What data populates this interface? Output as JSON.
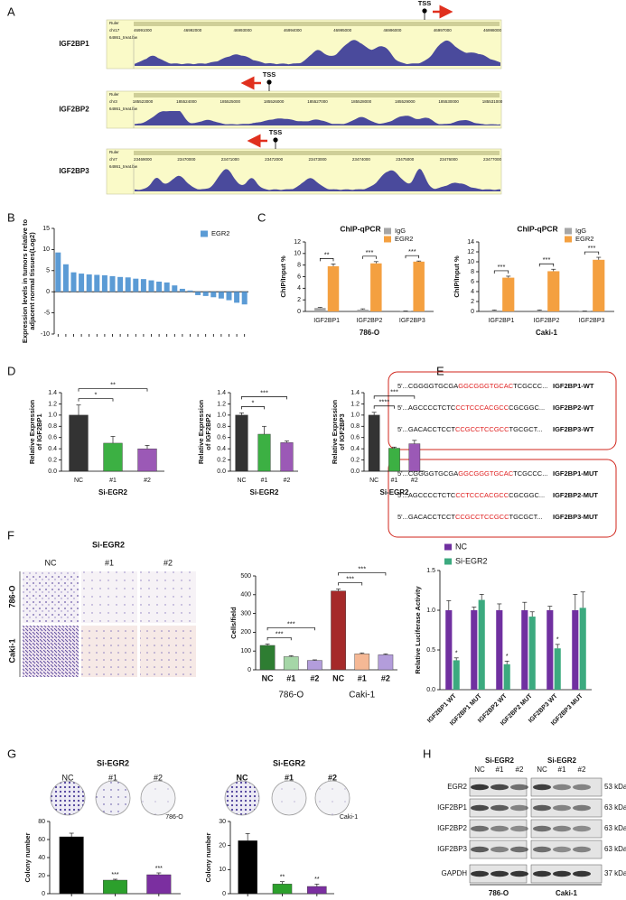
{
  "panel_labels": [
    "A",
    "B",
    "C",
    "D",
    "E",
    "F",
    "G",
    "H"
  ],
  "tracks": [
    {
      "gene": "IGF2BP1",
      "chrom": "chr17",
      "ruler": "Ruler",
      "file": "64861_treat.bw",
      "tss": "TSS",
      "positions": [
        "46991000",
        "46992000",
        "46993000",
        "46994000",
        "46995000",
        "46996000",
        "46997000",
        "46998000"
      ]
    },
    {
      "gene": "IGF2BP2",
      "chrom": "chr3",
      "ruler": "Ruler",
      "file": "64861_treat.bw",
      "tss": "TSS",
      "positions": [
        "185523000",
        "185524000",
        "185525000",
        "185526000",
        "185527000",
        "185528000",
        "185529000",
        "185530000",
        "185531000"
      ]
    },
    {
      "gene": "IGF2BP3",
      "chrom": "chr7",
      "ruler": "Ruler",
      "file": "64861_treat.bw",
      "tss": "TSS",
      "positions": [
        "23469000",
        "23470000",
        "23471000",
        "23472000",
        "23473000",
        "23474000",
        "23475000",
        "23476000",
        "23477000"
      ]
    }
  ],
  "sequences": {
    "wt": [
      {
        "prefix": "5'...CGGGGTGCGA",
        "site": "GGCGGGTGCAC",
        "suffix": "TCGCCC...",
        "name": "IGF2BP1-WT"
      },
      {
        "prefix": "5'...AGCCCCTCTC",
        "site": "CCTCCCACGCC",
        "suffix": "CGCGGC...",
        "name": "IGF2BP2-WT"
      },
      {
        "prefix": "5'...GACACCTCCT",
        "site": "CCGCCTCCGCC",
        "suffix": "TGCGCT...",
        "name": "IGF2BP3-WT"
      }
    ],
    "mut": [
      {
        "prefix": "5'...CGGGGTGCGA",
        "site": "GGCGGGTGCAC",
        "suffix": "TCGCCC...",
        "name": "IGF2BP1-MUT"
      },
      {
        "prefix": "5'...AGCCCCTCTC",
        "site": "CCTCCCACGCC",
        "suffix": "CGCGGC...",
        "name": "IGF2BP2-MUT"
      },
      {
        "prefix": "5'...GACACCTCCT",
        "site": "CCGCCTCCGCC",
        "suffix": "TGCGCT...",
        "name": "IGF2BP3-MUT"
      }
    ]
  },
  "invasion_images": {
    "title": "Si-EGR2",
    "columns": [
      "NC",
      "#1",
      "#2"
    ],
    "rows": [
      "786-O",
      "Caki-1"
    ]
  },
  "colony_images": [
    {
      "title": "Si-EGR2",
      "columns": [
        "NC",
        "#1",
        "#2"
      ],
      "cell_line": "786-O"
    },
    {
      "title": "Si-EGR2",
      "columns": [
        "NC",
        "#1",
        "#2"
      ],
      "cell_line": "Caki-1"
    }
  ],
  "western_blot": {
    "group_titles": [
      "Si-EGR2",
      "Si-EGR2"
    ],
    "lanes": [
      "NC",
      "#1",
      "#2",
      "NC",
      "#1",
      "#2"
    ],
    "proteins": [
      "EGR2",
      "IGF2BP1",
      "IGF2BP2",
      "IGF2BP3",
      "GAPDH"
    ],
    "sizes": [
      "53 kDa",
      "63 kDa",
      "63 kDa",
      "63 kDa",
      "37 kDa"
    ],
    "cell_lines": [
      "786-O",
      "Caki-1"
    ]
  },
  "chart_data": [
    {
      "type": "bar",
      "ylabel": [
        "Expression levels in tumors relative to",
        "adjacent normal tissues(Log2)"
      ],
      "series": [
        {
          "name": "EGR2",
          "color": "#5b9bd5",
          "values": [
            9.3,
            6.5,
            4.6,
            4.3,
            4.1,
            4.0,
            3.9,
            3.7,
            3.5,
            3.4,
            3.1,
            3.0,
            2.7,
            2.4,
            2.2,
            1.5,
            0.7,
            0.3,
            -0.8,
            -1.0,
            -1.3,
            -1.6,
            -2.0,
            -2.6,
            -3.0
          ]
        }
      ],
      "ylim": [
        -10,
        15
      ],
      "yticks": [
        -10,
        -5,
        0,
        5,
        10,
        15
      ]
    },
    {
      "type": "bar",
      "title": "ChIP-qPCR",
      "ylabel": [
        "ChIP/Input %"
      ],
      "xlabel": "786-O",
      "categories": [
        "IGF2BP1",
        "IGF2BP2",
        "IGF2BP3"
      ],
      "series": [
        {
          "name": "IgG",
          "color": "#a6a6a6",
          "values": [
            0.6,
            0.3,
            0.05
          ],
          "errors": [
            0.1,
            0.15,
            0.03
          ]
        },
        {
          "name": "EGR2",
          "color": "#f4a040",
          "values": [
            7.8,
            8.3,
            8.6
          ],
          "errors": [
            0.4,
            0.3,
            0.1
          ]
        }
      ],
      "ylim": [
        0,
        12
      ],
      "yticks": [
        0,
        2,
        4,
        6,
        8,
        10,
        12
      ],
      "annotations": [
        "**",
        "***",
        "***"
      ]
    },
    {
      "type": "bar",
      "title": "ChIP-qPCR",
      "ylabel": [
        "ChIP/Input %"
      ],
      "xlabel": "Caki-1",
      "categories": [
        "IGF2BP1",
        "IGF2BP2",
        "IGF2BP3"
      ],
      "series": [
        {
          "name": "IgG",
          "color": "#a6a6a6",
          "values": [
            0.2,
            0.2,
            0.05
          ],
          "errors": [
            0.1,
            0.1,
            0.03
          ]
        },
        {
          "name": "EGR2",
          "color": "#f4a040",
          "values": [
            6.8,
            8.1,
            10.4
          ],
          "errors": [
            0.3,
            0.4,
            0.5
          ]
        }
      ],
      "ylim": [
        0,
        14
      ],
      "yticks": [
        0,
        2,
        4,
        6,
        8,
        10,
        12,
        14
      ],
      "annotations": [
        "***",
        "***",
        "***"
      ]
    },
    {
      "type": "bar",
      "ylabel": [
        "Relative Expression",
        "of IGF2BP1"
      ],
      "xlabel": "Si-EGR2",
      "categories": [
        "NC",
        "#1",
        "#2"
      ],
      "values": [
        1.0,
        0.5,
        0.4
      ],
      "errors": [
        0.18,
        0.12,
        0.06
      ],
      "colors": [
        "#333333",
        "#3cb043",
        "#9b59b6"
      ],
      "ylim": [
        0,
        1.4
      ],
      "yticks": [
        {
          "value": 0,
          "label": "0.0"
        },
        0.2,
        0.4,
        0.6,
        0.8,
        {
          "value": 1,
          "label": "1.0"
        },
        1.2,
        1.4
      ],
      "annotations": [
        "*",
        "**"
      ]
    },
    {
      "type": "bar",
      "ylabel": [
        "Relative Expression",
        "of IGF2BP2"
      ],
      "xlabel": "Si-EGR2",
      "categories": [
        "NC",
        "#1",
        "#2"
      ],
      "values": [
        1.0,
        0.66,
        0.51
      ],
      "errors": [
        0.04,
        0.14,
        0.03
      ],
      "colors": [
        "#333333",
        "#3cb043",
        "#9b59b6"
      ],
      "ylim": [
        0,
        1.4
      ],
      "yticks": [
        {
          "value": 0,
          "label": "0.0"
        },
        0.2,
        0.4,
        0.6,
        0.8,
        {
          "value": 1,
          "label": "1.0"
        },
        1.2,
        1.4
      ],
      "annotations": [
        "*",
        "***"
      ]
    },
    {
      "type": "bar",
      "ylabel": [
        "Relative Expression",
        "of IGF2BP3"
      ],
      "xlabel": "Si-EGR2",
      "categories": [
        "NC",
        "#1",
        "#2"
      ],
      "values": [
        1.0,
        0.41,
        0.49
      ],
      "errors": [
        0.05,
        0.02,
        0.06
      ],
      "colors": [
        "#333333",
        "#3cb043",
        "#9b59b6"
      ],
      "ylim": [
        0,
        1.4
      ],
      "yticks": [
        {
          "value": 0,
          "label": "0.0"
        },
        0.2,
        0.4,
        0.6,
        0.8,
        {
          "value": 1,
          "label": "1.0"
        },
        1.2,
        1.4
      ],
      "annotations": [
        "****",
        "***"
      ]
    },
    {
      "type": "bar",
      "ylabel": [
        "Relative Luciferase Activity"
      ],
      "categories": [
        "IGF2BP1 WT",
        "IGF2BP1 MUT",
        "IGF2BP2 WT",
        "IGF2BP2 MUT",
        "IGF2BP3 WT",
        "IGF2BP3 MUT"
      ],
      "series": [
        {
          "name": "NC",
          "color": "#7030a0",
          "values": [
            1,
            1,
            1,
            1,
            1,
            1
          ],
          "errors": [
            0.12,
            0.04,
            0.08,
            0.1,
            0.05,
            0.2
          ]
        },
        {
          "name": "Si-EGR2",
          "color": "#3caa7f",
          "values": [
            0.37,
            1.13,
            0.32,
            0.92,
            0.52,
            1.03
          ],
          "errors": [
            0.03,
            0.07,
            0.04,
            0.06,
            0.05,
            0.2
          ],
          "annotations": [
            "*",
            null,
            "*",
            null,
            "*",
            null
          ]
        }
      ],
      "ylim": [
        0,
        1.5
      ],
      "yticks": [
        {
          "value": 0,
          "label": "0.0"
        },
        0.5,
        {
          "value": 1,
          "label": "1.0"
        },
        1.5
      ]
    },
    {
      "type": "bar",
      "ylabel": [
        "Cells/field"
      ],
      "categories": [
        "NC",
        "#1",
        "#2",
        "NC",
        "#1",
        "#2"
      ],
      "groups": [
        "786-O",
        "Caki-1"
      ],
      "values": [
        130,
        70,
        50,
        420,
        85,
        80
      ],
      "errors": [
        8,
        5,
        3,
        10,
        5,
        5
      ],
      "colors": [
        "#2e7d32",
        "#a5d6a7",
        "#b39ddb",
        "#a52a2a",
        "#f5b895",
        "#b39ddb"
      ],
      "ylim": [
        0,
        500
      ],
      "yticks": [
        0,
        100,
        200,
        300,
        400,
        500
      ],
      "annotations": [
        "***",
        "***",
        "***",
        "***"
      ]
    },
    {
      "type": "bar",
      "ylabel": [
        "Colony number"
      ],
      "values": [
        63,
        15,
        21
      ],
      "errors": [
        4,
        1,
        2
      ],
      "colors": [
        "#000000",
        "#2ca02c",
        "#7b2fa0"
      ],
      "ylim": [
        0,
        80
      ],
      "yticks": [
        0,
        20,
        40,
        60,
        80
      ],
      "annotations": [
        null,
        "***",
        "***"
      ]
    },
    {
      "type": "bar",
      "ylabel": [
        "Colony number"
      ],
      "values": [
        22,
        4,
        3
      ],
      "errors": [
        3,
        1,
        1
      ],
      "colors": [
        "#000000",
        "#2ca02c",
        "#7b2fa0"
      ],
      "ylim": [
        0,
        30
      ],
      "yticks": [
        0,
        10,
        20,
        30
      ],
      "annotations": [
        null,
        "**",
        "**"
      ]
    }
  ]
}
